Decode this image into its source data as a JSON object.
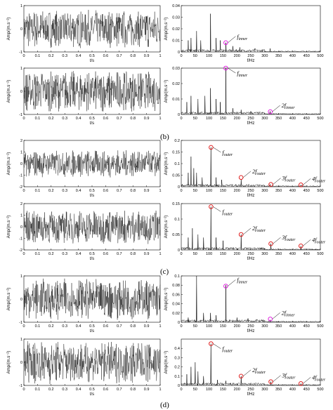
{
  "figure": {
    "labels": [
      "(b)",
      "(c)",
      "(d)"
    ]
  },
  "common": {
    "time_xlabel": "t/s",
    "freq_xlabel": "f/Hz",
    "ylabel": "Amp/(m.s⁻²)",
    "time_ticks": [
      "0",
      "0.1",
      "0.2",
      "0.3",
      "0.4",
      "0.5",
      "0.6",
      "0.7",
      "0.8",
      "0.9",
      "1"
    ],
    "freq_ticks": [
      "0",
      "50",
      "100",
      "150",
      "200",
      "250",
      "300",
      "350",
      "400",
      "450",
      "500"
    ]
  },
  "chart_data": [
    {
      "type": "line",
      "signal": "time",
      "row": 1,
      "ylim": [
        -1,
        1
      ],
      "yticks": [
        "-1",
        "0",
        "1"
      ],
      "amplitude": 0.85
    },
    {
      "type": "line",
      "signal": "spectrum",
      "row": 1,
      "ylim": [
        0,
        0.04
      ],
      "yticks": [
        "0",
        "0.01",
        "0.02",
        "0.03",
        "0.04"
      ],
      "series": [
        {
          "values": [
            [
              25,
              0.01
            ],
            [
              35,
              0.012
            ],
            [
              55,
              0.018
            ],
            [
              70,
              0.01
            ],
            [
              105,
              0.033
            ],
            [
              125,
              0.012
            ],
            [
              140,
              0.01
            ],
            [
              160,
              0.008
            ],
            [
              185,
              0.005
            ],
            [
              210,
              0.004
            ],
            [
              265,
              0.003
            ],
            [
              320,
              0.003
            ]
          ]
        }
      ],
      "markers": [
        {
          "x": 160,
          "y": 0.008,
          "color": "#e020e0"
        }
      ],
      "annotations": [
        {
          "label": "f",
          "sub": "inner"
        }
      ]
    },
    {
      "type": "line",
      "signal": "time",
      "row": 2,
      "ylim": [
        -1,
        1
      ],
      "yticks": [
        "-1",
        "0",
        "1"
      ],
      "amplitude": 0.9
    },
    {
      "type": "line",
      "signal": "spectrum",
      "row": 2,
      "ylim": [
        0,
        0.03
      ],
      "yticks": [
        "0",
        "0.01",
        "0.02",
        "0.03"
      ],
      "series": [
        {
          "values": [
            [
              20,
              0.008
            ],
            [
              35,
              0.012
            ],
            [
              60,
              0.01
            ],
            [
              85,
              0.012
            ],
            [
              105,
              0.017
            ],
            [
              125,
              0.01
            ],
            [
              140,
              0.008
            ],
            [
              160,
              0.03
            ],
            [
              185,
              0.004
            ],
            [
              215,
              0.003
            ],
            [
              250,
              0.002
            ],
            [
              320,
              0.002
            ]
          ]
        }
      ],
      "markers": [
        {
          "x": 160,
          "y": 0.03,
          "color": "#e020e0"
        },
        {
          "x": 320,
          "y": 0.0018,
          "color": "#e020e0"
        }
      ],
      "annotations": [
        {
          "label": "f",
          "sub": "inner"
        },
        {
          "label": "2f",
          "sub": "inner"
        }
      ]
    },
    {
      "type": "line",
      "signal": "time",
      "row": 3,
      "ylim": [
        -2,
        2
      ],
      "yticks": [
        "-2",
        "-1",
        "0",
        "1",
        "2"
      ],
      "amplitude": 1.2
    },
    {
      "type": "line",
      "signal": "spectrum",
      "row": 3,
      "ylim": [
        0,
        0.2
      ],
      "yticks": [
        "0",
        "0.05",
        "0.1",
        "0.15",
        "0.2"
      ],
      "series": [
        {
          "values": [
            [
              25,
              0.06
            ],
            [
              35,
              0.13
            ],
            [
              45,
              0.08
            ],
            [
              55,
              0.06
            ],
            [
              75,
              0.04
            ],
            [
              107,
              0.17
            ],
            [
              125,
              0.04
            ],
            [
              145,
              0.03
            ],
            [
              215,
              0.03
            ],
            [
              320,
              0.01
            ],
            [
              430,
              0.008
            ]
          ]
        }
      ],
      "markers": [
        {
          "x": 107,
          "y": 0.17,
          "color": "#e02020"
        },
        {
          "x": 215,
          "y": 0.04,
          "color": "#e02020"
        },
        {
          "x": 322,
          "y": 0.01,
          "color": "#e02020"
        },
        {
          "x": 430,
          "y": 0.008,
          "color": "#e02020"
        }
      ],
      "annotations": [
        {
          "label": "f",
          "sub": "outer"
        },
        {
          "label": "2f",
          "sub": "outer"
        },
        {
          "label": "3f",
          "sub": "outer"
        },
        {
          "label": "4f",
          "sub": "outer"
        }
      ]
    },
    {
      "type": "line",
      "signal": "time",
      "row": 4,
      "ylim": [
        -2,
        2
      ],
      "yticks": [
        "-2",
        "-1",
        "0",
        "1",
        "2"
      ],
      "amplitude": 1.5
    },
    {
      "type": "line",
      "signal": "spectrum",
      "row": 4,
      "ylim": [
        0,
        0.15
      ],
      "yticks": [
        "0",
        "0.05",
        "0.1",
        "0.15"
      ],
      "series": [
        {
          "values": [
            [
              25,
              0.04
            ],
            [
              40,
              0.07
            ],
            [
              60,
              0.05
            ],
            [
              80,
              0.04
            ],
            [
              107,
              0.14
            ],
            [
              125,
              0.04
            ],
            [
              150,
              0.03
            ],
            [
              215,
              0.05
            ],
            [
              322,
              0.02
            ],
            [
              430,
              0.013
            ]
          ]
        }
      ],
      "markers": [
        {
          "x": 107,
          "y": 0.14,
          "color": "#e02020"
        },
        {
          "x": 215,
          "y": 0.05,
          "color": "#e02020"
        },
        {
          "x": 322,
          "y": 0.02,
          "color": "#e02020"
        },
        {
          "x": 430,
          "y": 0.013,
          "color": "#e02020"
        }
      ],
      "annotations": [
        {
          "label": "f",
          "sub": "outer"
        },
        {
          "label": "2f",
          "sub": "outer"
        },
        {
          "label": "3f",
          "sub": "outer"
        },
        {
          "label": "4f",
          "sub": "outer"
        }
      ]
    },
    {
      "type": "line",
      "signal": "time",
      "row": 5,
      "ylim": [
        -1,
        1
      ],
      "yticks": [
        "-1",
        "0",
        "1"
      ],
      "amplitude": 0.9
    },
    {
      "type": "line",
      "signal": "spectrum",
      "row": 5,
      "ylim": [
        0,
        0.1
      ],
      "yticks": [
        "0",
        "0.02",
        "0.04",
        "0.06",
        "0.08",
        "0.1"
      ],
      "series": [
        {
          "values": [
            [
              25,
              0.01
            ],
            [
              55,
              0.1
            ],
            [
              80,
              0.02
            ],
            [
              105,
              0.02
            ],
            [
              125,
              0.015
            ],
            [
              160,
              0.08
            ],
            [
              200,
              0.01
            ],
            [
              240,
              0.008
            ],
            [
              270,
              0.006
            ],
            [
              320,
              0.005
            ]
          ]
        }
      ],
      "markers": [
        {
          "x": 160,
          "y": 0.078,
          "color": "#e020e0"
        },
        {
          "x": 320,
          "y": 0.007,
          "color": "#e020e0"
        }
      ],
      "annotations": [
        {
          "label": "f",
          "sub": "inner"
        },
        {
          "label": "2f",
          "sub": "inner"
        }
      ]
    },
    {
      "type": "line",
      "signal": "time",
      "row": 6,
      "ylim": [
        -1,
        1
      ],
      "yticks": [
        "-1",
        "0",
        "1"
      ],
      "amplitude": 0.95
    },
    {
      "type": "line",
      "signal": "spectrum",
      "row": 6,
      "ylim": [
        0,
        0.5
      ],
      "yticks": [
        "0",
        "0.1",
        "0.2",
        "0.3",
        "0.4"
      ],
      "series": [
        {
          "values": [
            [
              20,
              0.12
            ],
            [
              35,
              0.2
            ],
            [
              50,
              0.25
            ],
            [
              60,
              0.15
            ],
            [
              80,
              0.1
            ],
            [
              107,
              0.45
            ],
            [
              130,
              0.06
            ],
            [
              160,
              0.05
            ],
            [
              215,
              0.1
            ],
            [
              322,
              0.04
            ],
            [
              430,
              0.02
            ]
          ]
        }
      ],
      "markers": [
        {
          "x": 107,
          "y": 0.45,
          "color": "#e02020"
        },
        {
          "x": 215,
          "y": 0.1,
          "color": "#e02020"
        },
        {
          "x": 322,
          "y": 0.04,
          "color": "#e02020"
        },
        {
          "x": 430,
          "y": 0.02,
          "color": "#e02020"
        }
      ],
      "annotations": [
        {
          "label": "f",
          "sub": "outer"
        },
        {
          "label": "2f",
          "sub": "outer"
        },
        {
          "label": "3f",
          "sub": "outer"
        },
        {
          "label": "4f",
          "sub": "outer"
        }
      ]
    }
  ]
}
